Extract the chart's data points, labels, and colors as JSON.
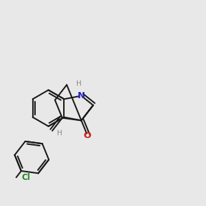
{
  "bg_color": "#e8e8e8",
  "bond_color": "#1a1a1a",
  "N_color": "#2222bb",
  "O_color": "#cc2020",
  "Cl_color": "#228822",
  "H_color": "#888888",
  "lw": 1.5,
  "dbl_off": 0.013,
  "figsize": [
    3.0,
    3.0
  ],
  "dpi": 100,
  "xlim": [
    0.0,
    1.0
  ],
  "ylim": [
    0.0,
    1.0
  ]
}
